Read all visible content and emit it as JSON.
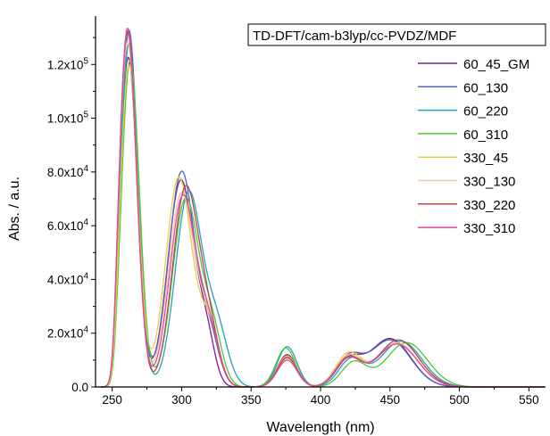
{
  "chart_data": {
    "type": "line",
    "title": "TD-DFT/cam-b3lyp/cc-PVDZ/MDF",
    "xlabel": "Wavelength (nm)",
    "ylabel": "Abs. / a.u.",
    "xlim": [
      238,
      562
    ],
    "ylim": [
      0,
      138000
    ],
    "x_ticks": [
      250,
      300,
      350,
      400,
      450,
      500,
      550
    ],
    "y_ticks": [
      {
        "value": 0,
        "mantissa": "0.0",
        "exp": ""
      },
      {
        "value": 20000,
        "mantissa": "2.0x10",
        "exp": "4"
      },
      {
        "value": 40000,
        "mantissa": "4.0x10",
        "exp": "4"
      },
      {
        "value": 60000,
        "mantissa": "6.0x10",
        "exp": "4"
      },
      {
        "value": 80000,
        "mantissa": "8.0x10",
        "exp": "4"
      },
      {
        "value": 100000,
        "mantissa": "1.0x10",
        "exp": "5"
      },
      {
        "value": 120000,
        "mantissa": "1.2x10",
        "exp": "5"
      }
    ],
    "legend_position": "top-right",
    "series": [
      {
        "name": "60_45_GM",
        "color": "#7a1e8c",
        "peaks": [
          [
            261.5,
            123000,
            6.5
          ],
          [
            299.5,
            77000,
            9.5
          ],
          [
            318,
            16000,
            6
          ],
          [
            376,
            12000,
            7
          ],
          [
            420,
            9000,
            9
          ],
          [
            450,
            18000,
            15
          ]
        ]
      },
      {
        "name": "60_130",
        "color": "#5560b8",
        "peaks": [
          [
            262,
            133000,
            6.5
          ],
          [
            300,
            80000,
            9.5
          ],
          [
            320,
            18000,
            7
          ],
          [
            376,
            11000,
            7
          ],
          [
            420,
            10000,
            9
          ],
          [
            450,
            17500,
            15
          ]
        ]
      },
      {
        "name": "60_220",
        "color": "#1fa3b8",
        "peaks": [
          [
            262,
            128000,
            6.5
          ],
          [
            305,
            72000,
            9.5
          ],
          [
            325,
            22000,
            8
          ],
          [
            376,
            15000,
            7
          ],
          [
            422,
            10000,
            9
          ],
          [
            458,
            17000,
            15
          ]
        ]
      },
      {
        "name": "60_310",
        "color": "#4fc83a",
        "peaks": [
          [
            263,
            122000,
            6.5
          ],
          [
            303,
            70000,
            9.5
          ],
          [
            322,
            20000,
            7
          ],
          [
            375,
            14500,
            7
          ],
          [
            424,
            9000,
            9
          ],
          [
            462,
            16500,
            15
          ]
        ]
      },
      {
        "name": "330_45",
        "color": "#e8cf4a",
        "peaks": [
          [
            262,
            120000,
            6.5
          ],
          [
            298,
            78000,
            9.5
          ],
          [
            320,
            22000,
            7
          ],
          [
            376,
            11500,
            7
          ],
          [
            420,
            12000,
            9
          ],
          [
            455,
            16000,
            15
          ]
        ]
      },
      {
        "name": "330_130",
        "color": "#f1c8a3",
        "peaks": [
          [
            261,
            129000,
            6.5
          ],
          [
            300,
            72000,
            9.5
          ],
          [
            320,
            20000,
            7
          ],
          [
            376,
            10500,
            7
          ],
          [
            420,
            11000,
            9
          ],
          [
            455,
            16500,
            15
          ]
        ]
      },
      {
        "name": "330_220",
        "color": "#b7464a",
        "peaks": [
          [
            261,
            133000,
            6.5
          ],
          [
            303,
            74000,
            9.5
          ],
          [
            320,
            18000,
            7
          ],
          [
            376,
            11000,
            7
          ],
          [
            420,
            10500,
            9
          ],
          [
            456,
            17500,
            15
          ]
        ]
      },
      {
        "name": "330_310",
        "color": "#e0489b",
        "peaks": [
          [
            261,
            134000,
            6.5
          ],
          [
            301,
            71000,
            9.5
          ],
          [
            320,
            19000,
            7
          ],
          [
            376,
            10000,
            7
          ],
          [
            420,
            10000,
            9
          ],
          [
            455,
            16000,
            15
          ]
        ]
      }
    ]
  }
}
